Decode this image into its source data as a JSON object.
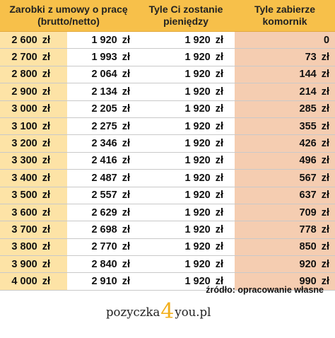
{
  "headers": [
    "Zarobki z umowy o pracę (brutto/netto)",
    "Tyle Ci zostanie pieniędzy",
    "Tyle zabierze komornik"
  ],
  "currency": "zł",
  "rows": [
    {
      "brutto": "2 600",
      "netto": "1 920",
      "remaining": "1 920",
      "taken": "0",
      "taken_currency": ""
    },
    {
      "brutto": "2 700",
      "netto": "1 993",
      "remaining": "1 920",
      "taken": "73",
      "taken_currency": "zł"
    },
    {
      "brutto": "2 800",
      "netto": "2 064",
      "remaining": "1 920",
      "taken": "144",
      "taken_currency": "zł"
    },
    {
      "brutto": "2 900",
      "netto": "2 134",
      "remaining": "1 920",
      "taken": "214",
      "taken_currency": "zł"
    },
    {
      "brutto": "3 000",
      "netto": "2 205",
      "remaining": "1 920",
      "taken": "285",
      "taken_currency": "zł"
    },
    {
      "brutto": "3 100",
      "netto": "2 275",
      "remaining": "1 920",
      "taken": "355",
      "taken_currency": "zł"
    },
    {
      "brutto": "3 200",
      "netto": "2 346",
      "remaining": "1 920",
      "taken": "426",
      "taken_currency": "zł"
    },
    {
      "brutto": "3 300",
      "netto": "2 416",
      "remaining": "1 920",
      "taken": "496",
      "taken_currency": "zł"
    },
    {
      "brutto": "3 400",
      "netto": "2 487",
      "remaining": "1 920",
      "taken": "567",
      "taken_currency": "zł"
    },
    {
      "brutto": "3 500",
      "netto": "2 557",
      "remaining": "1 920",
      "taken": "637",
      "taken_currency": "zł"
    },
    {
      "brutto": "3 600",
      "netto": "2 629",
      "remaining": "1 920",
      "taken": "709",
      "taken_currency": "zł"
    },
    {
      "brutto": "3 700",
      "netto": "2 698",
      "remaining": "1 920",
      "taken": "778",
      "taken_currency": "zł"
    },
    {
      "brutto": "3 800",
      "netto": "2 770",
      "remaining": "1 920",
      "taken": "850",
      "taken_currency": "zł"
    },
    {
      "brutto": "3 900",
      "netto": "2 840",
      "remaining": "1 920",
      "taken": "920",
      "taken_currency": "zł"
    },
    {
      "brutto": "4 000",
      "netto": "2 910",
      "remaining": "1 920",
      "taken": "990",
      "taken_currency": "zł"
    }
  ],
  "source": "źródło: opracowanie własne",
  "logo": {
    "before": "pozyczka",
    "number": "4",
    "after": "you.pl"
  },
  "colors": {
    "header": "#f7c04a",
    "salary_column": "#fde3a6",
    "taken_column": "#f5cdb1",
    "logo_accent": "#f2b01e"
  }
}
